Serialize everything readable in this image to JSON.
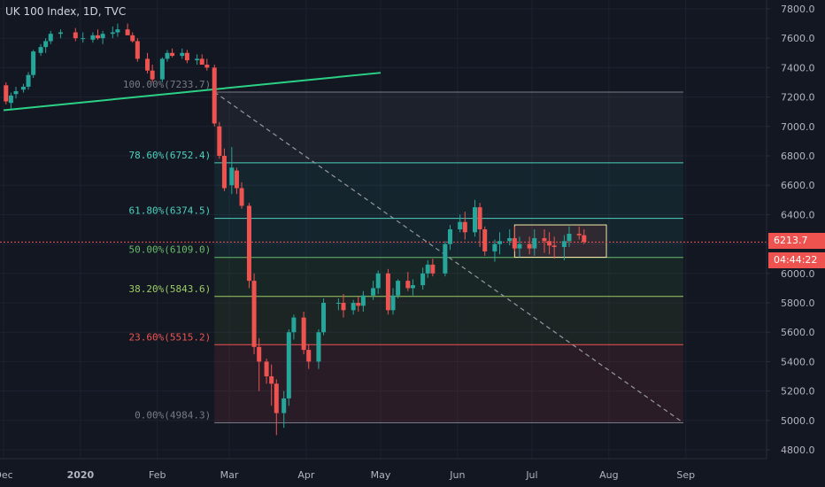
{
  "header": {
    "title": "UK 100 Index, 1D, TVC"
  },
  "price_tags": {
    "last_price": "6213.7",
    "countdown": "04:44:22"
  },
  "colors": {
    "background": "#131722",
    "grid": "#1e2230",
    "axis_text": "#b2b5be",
    "up": "#26a69a",
    "down": "#ef5350",
    "trendline": "#2bd185",
    "diagonal": "#9598a1",
    "box": "#f7e7a6"
  },
  "chart_data": {
    "type": "candlestick",
    "title": "UK 100 Index, 1D, TVC",
    "y_axis": {
      "position": "right",
      "ticks": [
        "7800.0",
        "7600.0",
        "7400.0",
        "7200.0",
        "7000.0",
        "6800.0",
        "6600.0",
        "6400.0",
        "6200.0",
        "6000.0",
        "5800.0",
        "5600.0",
        "5400.0",
        "5200.0",
        "5000.0",
        "4800.0"
      ],
      "range": [
        4740,
        7860
      ]
    },
    "x_axis": {
      "ticks": [
        "Dec",
        "2020",
        "Feb",
        "Mar",
        "Apr",
        "May",
        "Jun",
        "Jul",
        "Aug",
        "Sep"
      ],
      "range_dates": [
        "2019-12-01",
        "2020-09-30"
      ]
    },
    "grid": true,
    "last_price": 6213.7,
    "fibonacci": {
      "start_date": "2020-02-24",
      "end_date": "2020-08-31",
      "levels": [
        {
          "ratio": 1.0,
          "label": "100.00%(7233.7)",
          "value": 7233.7,
          "color": "#787b86"
        },
        {
          "ratio": 0.786,
          "label": "78.60%(6752.4)",
          "value": 6752.4,
          "color": "#4dd0c0"
        },
        {
          "ratio": 0.618,
          "label": "61.80%(6374.5)",
          "value": 6374.5,
          "color": "#4dd0c0"
        },
        {
          "ratio": 0.5,
          "label": "50.00%(6109.0)",
          "value": 6109.0,
          "color": "#66bb6a"
        },
        {
          "ratio": 0.382,
          "label": "38.20%(5843.6)",
          "value": 5843.6,
          "color": "#9ccc65"
        },
        {
          "ratio": 0.236,
          "label": "23.60%(5515.2)",
          "value": 5515.2,
          "color": "#ef5350"
        },
        {
          "ratio": 0.0,
          "label": "0.00%(4984.3)",
          "value": 4984.3,
          "color": "#787b86"
        }
      ]
    },
    "trendline": {
      "points": [
        [
          "2019-12-01",
          7110
        ],
        [
          "2020-05-01",
          7365
        ]
      ]
    },
    "diagonal": {
      "points": [
        [
          "2020-02-24",
          7233.7
        ],
        [
          "2020-08-31",
          4984.3
        ]
      ]
    },
    "rect": {
      "from_date": "2020-06-24",
      "to_date": "2020-07-31",
      "top": 6330,
      "bottom": 6110
    },
    "candles": {
      "dates": [
        "2019-12-02",
        "2019-12-04",
        "2019-12-06",
        "2019-12-09",
        "2019-12-11",
        "2019-12-13",
        "2019-12-16",
        "2019-12-18",
        "2019-12-20",
        "2019-12-24",
        "2019-12-30",
        "2020-01-02",
        "2020-01-06",
        "2020-01-08",
        "2020-01-10",
        "2020-01-14",
        "2020-01-16",
        "2020-01-20",
        "2020-01-22",
        "2020-01-24",
        "2020-01-28",
        "2020-01-30",
        "2020-02-03",
        "2020-02-05",
        "2020-02-07",
        "2020-02-11",
        "2020-02-13",
        "2020-02-17",
        "2020-02-19",
        "2020-02-21",
        "2020-02-24",
        "2020-02-26",
        "2020-02-28",
        "2020-03-02",
        "2020-03-04",
        "2020-03-06",
        "2020-03-09",
        "2020-03-11",
        "2020-03-13",
        "2020-03-16",
        "2020-03-18",
        "2020-03-20",
        "2020-03-23",
        "2020-03-25",
        "2020-03-27",
        "2020-03-31",
        "2020-04-02",
        "2020-04-06",
        "2020-04-08",
        "2020-04-14",
        "2020-04-16",
        "2020-04-20",
        "2020-04-22",
        "2020-04-24",
        "2020-04-28",
        "2020-04-30",
        "2020-05-04",
        "2020-05-06",
        "2020-05-08",
        "2020-05-12",
        "2020-05-14",
        "2020-05-18",
        "2020-05-20",
        "2020-05-22",
        "2020-05-27",
        "2020-05-29",
        "2020-06-02",
        "2020-06-04",
        "2020-06-08",
        "2020-06-10",
        "2020-06-12",
        "2020-06-16",
        "2020-06-18",
        "2020-06-22",
        "2020-06-24",
        "2020-06-26",
        "2020-06-30",
        "2020-07-02",
        "2020-07-06",
        "2020-07-08",
        "2020-07-10",
        "2020-07-14",
        "2020-07-16",
        "2020-07-20",
        "2020-07-22"
      ],
      "open": [
        7280,
        7160,
        7220,
        7250,
        7270,
        7350,
        7500,
        7540,
        7580,
        7630,
        7640,
        7600,
        7590,
        7620,
        7600,
        7630,
        7640,
        7660,
        7620,
        7580,
        7460,
        7380,
        7320,
        7460,
        7500,
        7480,
        7500,
        7450,
        7460,
        7420,
        7400,
        7000,
        6800,
        6600,
        6700,
        6580,
        6460,
        5950,
        5500,
        5400,
        5300,
        5250,
        5050,
        5150,
        5600,
        5700,
        5480,
        5400,
        5600,
        5800,
        5800,
        5750,
        5800,
        5780,
        5850,
        5900,
        6000,
        5750,
        5850,
        5950,
        5900,
        5920,
        6000,
        6060,
        6000,
        6200,
        6300,
        6350,
        6280,
        6450,
        6300,
        6150,
        6200,
        6220,
        6240,
        6170,
        6200,
        6170,
        6240,
        6220,
        6190,
        6180,
        6220,
        6270,
        6260
      ],
      "high": [
        7300,
        7230,
        7270,
        7290,
        7370,
        7520,
        7560,
        7600,
        7650,
        7660,
        7670,
        7640,
        7640,
        7660,
        7650,
        7680,
        7700,
        7700,
        7640,
        7600,
        7500,
        7420,
        7470,
        7520,
        7530,
        7530,
        7520,
        7490,
        7490,
        7460,
        7420,
        7030,
        6850,
        6860,
        6720,
        6620,
        6480,
        6000,
        5560,
        5420,
        5380,
        5280,
        5200,
        5620,
        5720,
        5740,
        5520,
        5620,
        5830,
        5830,
        5860,
        5820,
        5840,
        5880,
        5950,
        6020,
        6030,
        5900,
        5960,
        6010,
        5960,
        6040,
        6090,
        6100,
        6220,
        6330,
        6400,
        6420,
        6500,
        6480,
        6320,
        6230,
        6280,
        6300,
        6320,
        6250,
        6250,
        6300,
        6300,
        6280,
        6250,
        6260,
        6320,
        6320,
        6300
      ],
      "low": [
        7150,
        7120,
        7190,
        7230,
        7250,
        7330,
        7480,
        7500,
        7560,
        7600,
        7580,
        7570,
        7570,
        7590,
        7560,
        7600,
        7610,
        7620,
        7570,
        7440,
        7360,
        7300,
        7300,
        7440,
        7470,
        7460,
        7430,
        7420,
        7420,
        7380,
        7000,
        6780,
        6560,
        6540,
        6540,
        6440,
        5900,
        5450,
        5200,
        5250,
        5100,
        4900,
        4950,
        5100,
        5550,
        5450,
        5350,
        5350,
        5580,
        5750,
        5700,
        5720,
        5740,
        5740,
        5820,
        5860,
        5720,
        5720,
        5830,
        5880,
        5850,
        5890,
        5970,
        5980,
        5980,
        6160,
        6280,
        6230,
        6250,
        6180,
        6120,
        6080,
        6130,
        6190,
        6150,
        6110,
        6130,
        6120,
        6140,
        6130,
        6100,
        6090,
        6180,
        6230,
        6200
      ],
      "close": [
        7170,
        7210,
        7240,
        7270,
        7350,
        7510,
        7540,
        7580,
        7630,
        7640,
        7600,
        7600,
        7620,
        7600,
        7630,
        7640,
        7660,
        7620,
        7580,
        7460,
        7380,
        7320,
        7460,
        7500,
        7480,
        7500,
        7450,
        7460,
        7420,
        7400,
        7020,
        6800,
        6580,
        6720,
        6580,
        6460,
        5950,
        5500,
        5400,
        5300,
        5250,
        5050,
        5150,
        5600,
        5700,
        5480,
        5400,
        5600,
        5800,
        5800,
        5750,
        5800,
        5780,
        5850,
        5900,
        6000,
        5750,
        5850,
        5950,
        5900,
        5920,
        6000,
        6060,
        6000,
        6200,
        6300,
        6350,
        6280,
        6450,
        6300,
        6150,
        6200,
        6220,
        6240,
        6170,
        6200,
        6170,
        6240,
        6220,
        6190,
        6180,
        6220,
        6270,
        6260,
        6213.7
      ]
    }
  }
}
